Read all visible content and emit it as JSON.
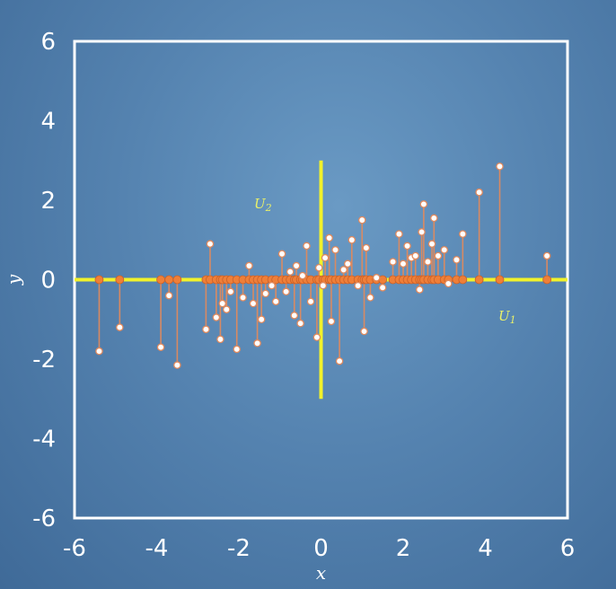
{
  "chart_data": {
    "type": "scatter",
    "title": "",
    "xlabel": "x",
    "ylabel": "y",
    "xlim": [
      -6,
      6
    ],
    "ylim": [
      -6,
      6
    ],
    "xticks": [
      "-6",
      "-4",
      "-2",
      "0",
      "2",
      "4",
      "6"
    ],
    "yticks": [
      "-6",
      "-4",
      "-2",
      "0",
      "2",
      "4",
      "6"
    ],
    "grid": false,
    "annotations": {
      "u1_label": "U",
      "u1_sub": "1",
      "u2_label": "U",
      "u2_sub": "2"
    },
    "projection_axes": {
      "u1": {
        "from": [
          -6,
          0
        ],
        "to": [
          6,
          0
        ]
      },
      "u2": {
        "from": [
          0,
          -3
        ],
        "to": [
          0,
          3
        ]
      }
    },
    "colors": {
      "frame": "#ffffff",
      "axis_line": "#f2f22a",
      "point": "#ffffff",
      "projection": "#ef7f38",
      "stem": "#e08a5e"
    },
    "points": [
      {
        "x": -5.4,
        "y": -1.8
      },
      {
        "x": -4.9,
        "y": -1.2
      },
      {
        "x": -3.9,
        "y": -1.7
      },
      {
        "x": -3.7,
        "y": -0.4
      },
      {
        "x": -3.5,
        "y": -2.15
      },
      {
        "x": -2.8,
        "y": -1.25
      },
      {
        "x": -2.7,
        "y": 0.9
      },
      {
        "x": -2.55,
        "y": -0.95
      },
      {
        "x": -2.45,
        "y": -1.5
      },
      {
        "x": -2.4,
        "y": -0.6
      },
      {
        "x": -2.3,
        "y": -0.75
      },
      {
        "x": -2.2,
        "y": -0.3
      },
      {
        "x": -2.05,
        "y": -1.75
      },
      {
        "x": -1.9,
        "y": -0.45
      },
      {
        "x": -1.75,
        "y": 0.35
      },
      {
        "x": -1.65,
        "y": -0.6
      },
      {
        "x": -1.55,
        "y": -1.6
      },
      {
        "x": -1.45,
        "y": -1.0
      },
      {
        "x": -1.35,
        "y": -0.35
      },
      {
        "x": -1.2,
        "y": -0.15
      },
      {
        "x": -1.1,
        "y": -0.55
      },
      {
        "x": -0.95,
        "y": 0.65
      },
      {
        "x": -0.85,
        "y": -0.3
      },
      {
        "x": -0.75,
        "y": 0.2
      },
      {
        "x": -0.65,
        "y": -0.9
      },
      {
        "x": -0.6,
        "y": 0.35
      },
      {
        "x": -0.5,
        "y": -1.1
      },
      {
        "x": -0.45,
        "y": 0.1
      },
      {
        "x": -0.35,
        "y": 0.85
      },
      {
        "x": -0.25,
        "y": -0.55
      },
      {
        "x": -0.1,
        "y": -1.45
      },
      {
        "x": -0.05,
        "y": 0.3
      },
      {
        "x": 0.05,
        "y": -0.15
      },
      {
        "x": 0.1,
        "y": 0.55
      },
      {
        "x": 0.2,
        "y": 1.05
      },
      {
        "x": 0.25,
        "y": -1.05
      },
      {
        "x": 0.35,
        "y": 0.75
      },
      {
        "x": 0.45,
        "y": -2.05
      },
      {
        "x": 0.55,
        "y": 0.25
      },
      {
        "x": 0.65,
        "y": 0.4
      },
      {
        "x": 0.75,
        "y": 1.0
      },
      {
        "x": 0.9,
        "y": -0.15
      },
      {
        "x": 1.0,
        "y": 1.5
      },
      {
        "x": 1.05,
        "y": -1.3
      },
      {
        "x": 1.1,
        "y": 0.8
      },
      {
        "x": 1.2,
        "y": -0.45
      },
      {
        "x": 1.35,
        "y": 0.05
      },
      {
        "x": 1.5,
        "y": -0.2
      },
      {
        "x": 1.75,
        "y": 0.45
      },
      {
        "x": 1.9,
        "y": 1.15
      },
      {
        "x": 2.0,
        "y": 0.4
      },
      {
        "x": 2.1,
        "y": 0.85
      },
      {
        "x": 2.2,
        "y": 0.55
      },
      {
        "x": 2.3,
        "y": 0.6
      },
      {
        "x": 2.4,
        "y": -0.25
      },
      {
        "x": 2.45,
        "y": 1.2
      },
      {
        "x": 2.5,
        "y": 1.9
      },
      {
        "x": 2.6,
        "y": 0.45
      },
      {
        "x": 2.7,
        "y": 0.9
      },
      {
        "x": 2.75,
        "y": 1.55
      },
      {
        "x": 2.85,
        "y": 0.6
      },
      {
        "x": 3.0,
        "y": 0.75
      },
      {
        "x": 3.1,
        "y": -0.1
      },
      {
        "x": 3.3,
        "y": 0.5
      },
      {
        "x": 3.45,
        "y": 1.15
      },
      {
        "x": 3.85,
        "y": 2.2
      },
      {
        "x": 4.35,
        "y": 2.85
      },
      {
        "x": 5.5,
        "y": 0.6
      }
    ]
  }
}
